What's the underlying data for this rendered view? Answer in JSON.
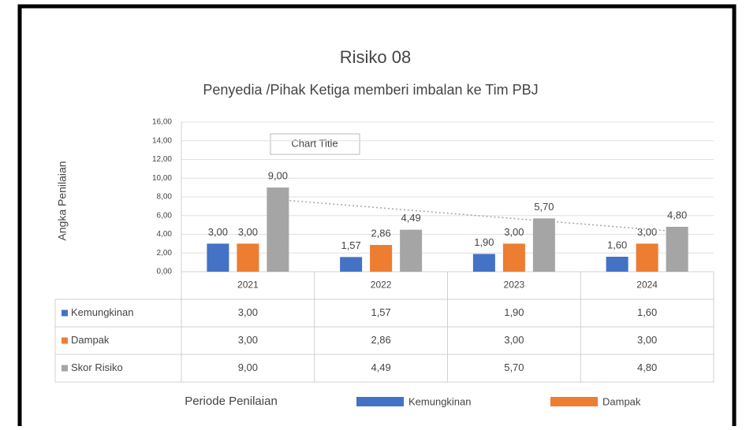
{
  "chart_data": {
    "type": "bar",
    "title": "Risiko 08",
    "subtitle": "Penyedia /Pihak Ketiga  memberi imbalan ke Tim PBJ",
    "floating_text": "Chart Title",
    "y_label": "Angka Penilaian",
    "x_label": "Periode Penilaian",
    "categories": [
      "2021",
      "2022",
      "2023",
      "2024"
    ],
    "series": [
      {
        "name": "Kemungkinan",
        "color": "#4472c4",
        "values": [
          3.0,
          1.57,
          1.9,
          1.6
        ],
        "value_labels": [
          "3,00",
          "1,57",
          "1,90",
          "1,60"
        ]
      },
      {
        "name": "Dampak",
        "color": "#ed7d31",
        "values": [
          3.0,
          2.86,
          3.0,
          3.0
        ],
        "value_labels": [
          "3,00",
          "2,86",
          "3,00",
          "3,00"
        ]
      },
      {
        "name": "Skor Risiko",
        "color": "#a5a5a5",
        "values": [
          9.0,
          4.49,
          5.7,
          4.8
        ],
        "value_labels": [
          "9,00",
          "4,49",
          "5,70",
          "4,80"
        ]
      }
    ],
    "ylim": [
      0,
      16
    ],
    "yticks": [
      {
        "value": 0,
        "label": "0,00"
      },
      {
        "value": 2,
        "label": "2,00"
      },
      {
        "value": 4,
        "label": "4,00"
      },
      {
        "value": 6,
        "label": "6,00"
      },
      {
        "value": 8,
        "label": "8,00"
      },
      {
        "value": 10,
        "label": "10,00"
      },
      {
        "value": 12,
        "label": "12,00"
      },
      {
        "value": 14,
        "label": "14,00"
      },
      {
        "value": 16,
        "label": "16,00"
      }
    ],
    "grid": true,
    "legend": {
      "position": "bottom",
      "entries": [
        "Kemungkinan",
        "Dampak"
      ]
    }
  }
}
